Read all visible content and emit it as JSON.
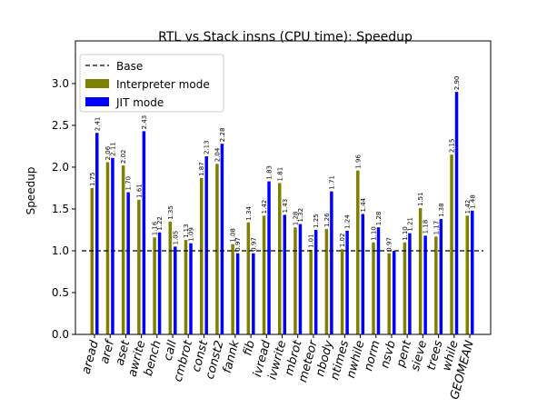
{
  "chart_data": {
    "type": "bar",
    "title": "RTL vs Stack insns (CPU time): Speedup",
    "y_label": "Speedup",
    "categories": [
      "aread",
      "aref",
      "aset",
      "awrite",
      "bench",
      "call",
      "cmbrot",
      "const",
      "const2",
      "fannk",
      "fib",
      "ivread",
      "ivwrite",
      "mbrot",
      "meteor",
      "nbody",
      "ntimes",
      "nwhile",
      "norm",
      "nsvb",
      "pent",
      "sieve",
      "trees",
      "while",
      "GEOMEAN"
    ],
    "series": [
      {
        "name": "Interpreter mode",
        "color": "#808000",
        "values": [
          1.75,
          2.06,
          2.02,
          1.61,
          1.16,
          1.35,
          1.13,
          1.87,
          2.04,
          1.08,
          1.34,
          1.42,
          1.81,
          1.28,
          1.01,
          1.26,
          1.02,
          1.96,
          1.1,
          0.97,
          1.1,
          1.51,
          1.17,
          2.15,
          1.42
        ],
        "value_labels": [
          "1.75",
          "2.06",
          "2.02",
          "1.61",
          "1.16",
          "1.35",
          "1.13",
          "1.87",
          "2.04",
          "1.08",
          "1.34",
          "1.42",
          "1.81",
          "1.28",
          "1.01",
          "1.26",
          "1.02",
          "1.96",
          "1.10",
          "0.97",
          "1.10",
          "1.51",
          "1.17",
          "2.15",
          "1.42"
        ]
      },
      {
        "name": "JIT mode",
        "color": "#0000ff",
        "values": [
          2.41,
          2.11,
          1.7,
          2.43,
          1.22,
          1.05,
          1.09,
          2.13,
          2.28,
          0.97,
          0.97,
          1.83,
          1.43,
          1.32,
          1.25,
          1.71,
          1.24,
          1.44,
          1.28,
          1.0,
          1.21,
          1.18,
          1.38,
          2.9,
          1.48
        ],
        "value_labels": [
          "2.41",
          "2.11",
          "1.70",
          "2.43",
          "1.22",
          "1.05",
          "1.09",
          "2.13",
          "2.28",
          "0.97",
          "0.97",
          "1.83",
          "1.43",
          "1.32",
          "1.25",
          "1.71",
          "1.24",
          "1.44",
          "1.28",
          null,
          "1.21",
          "1.18",
          "1.38",
          "2.90",
          "1.48"
        ]
      }
    ],
    "reference_line": {
      "name": "Base",
      "value": 1,
      "color": "#000000"
    },
    "ylim": [
      0,
      3.51
    ],
    "yticks": [
      {
        "value": 0,
        "label": "0.0"
      },
      {
        "value": 0.5,
        "label": "0.5"
      },
      {
        "value": 1,
        "label": "1.0"
      },
      {
        "value": 1.5,
        "label": "1.5"
      },
      {
        "value": 2,
        "label": "2.0"
      },
      {
        "value": 2.5,
        "label": "2.5"
      },
      {
        "value": 3,
        "label": "3.0"
      }
    ],
    "legend": "upper left"
  }
}
